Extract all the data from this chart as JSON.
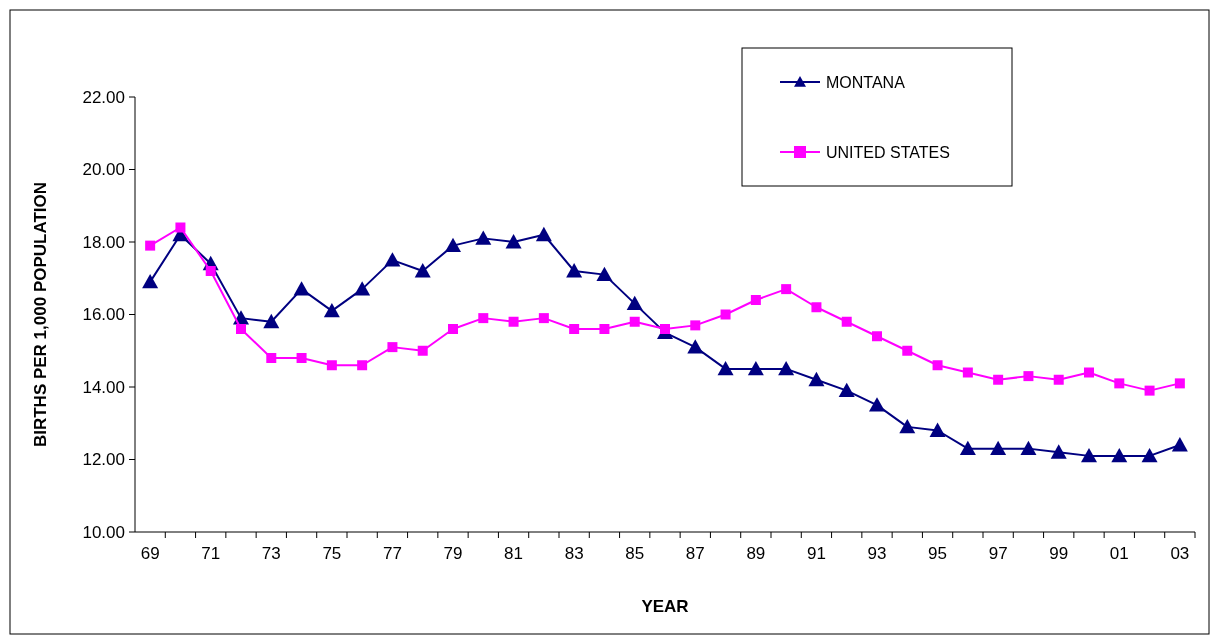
{
  "chart_data": {
    "type": "line",
    "xlabel": "YEAR",
    "ylabel": "BIRTHS PER 1,000 POPULATION",
    "categories": [
      "69",
      null,
      "71",
      null,
      "73",
      null,
      "75",
      null,
      "77",
      null,
      "79",
      null,
      "81",
      null,
      "83",
      null,
      "85",
      null,
      "87",
      null,
      "89",
      null,
      "91",
      null,
      "93",
      null,
      "95",
      null,
      "97",
      null,
      "99",
      null,
      "01",
      null,
      "03"
    ],
    "series": [
      {
        "name": "MONTANA",
        "color": "#000080",
        "marker": "triangle",
        "values": [
          16.9,
          18.2,
          17.4,
          15.9,
          15.8,
          16.7,
          16.1,
          16.7,
          17.5,
          17.2,
          17.9,
          18.1,
          18.0,
          18.2,
          17.2,
          17.1,
          16.3,
          15.5,
          15.1,
          14.5,
          14.5,
          14.5,
          14.2,
          13.9,
          13.5,
          12.9,
          12.8,
          12.3,
          12.3,
          12.3,
          12.2,
          12.1,
          12.1,
          12.1,
          12.4
        ]
      },
      {
        "name": "UNITED STATES",
        "color": "#ff00ff",
        "marker": "square",
        "values": [
          17.9,
          18.4,
          17.2,
          15.6,
          14.8,
          14.8,
          14.6,
          14.6,
          15.1,
          15.0,
          15.6,
          15.9,
          15.8,
          15.9,
          15.6,
          15.6,
          15.8,
          15.6,
          15.7,
          16.0,
          16.4,
          16.7,
          16.2,
          15.8,
          15.4,
          15.0,
          14.6,
          14.4,
          14.2,
          14.3,
          14.2,
          14.4,
          14.1,
          13.9,
          14.1
        ]
      }
    ],
    "ylim": [
      10,
      22
    ],
    "yticks": [
      {
        "value": 10,
        "label": "10.00"
      },
      {
        "value": 12,
        "label": "12.00"
      },
      {
        "value": 14,
        "label": "14.00"
      },
      {
        "value": 16,
        "label": "16.00"
      },
      {
        "value": 18,
        "label": "18.00"
      },
      {
        "value": 20,
        "label": "20.00"
      },
      {
        "value": 22,
        "label": "22.00"
      }
    ],
    "grid": false,
    "legend": "top right",
    "line_style": "solid"
  }
}
